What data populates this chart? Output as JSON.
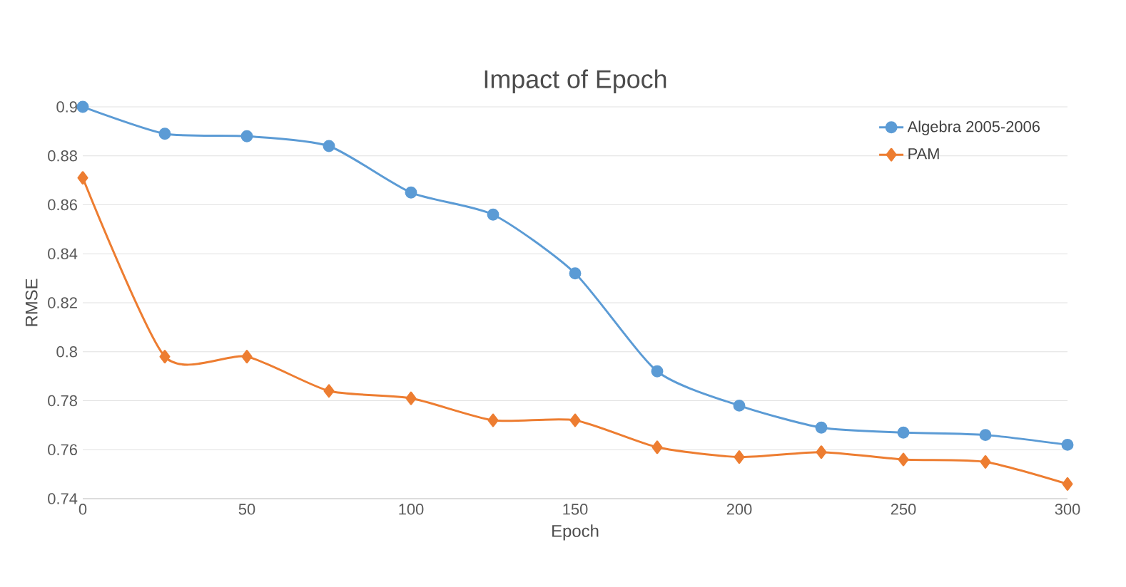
{
  "chart_data": {
    "type": "line",
    "title": "Impact of Epoch",
    "xlabel": "Epoch",
    "ylabel": "RMSE",
    "x": [
      0,
      25,
      50,
      75,
      100,
      125,
      150,
      175,
      200,
      225,
      250,
      275,
      300
    ],
    "series": [
      {
        "name": "Algebra 2005-2006",
        "color": "#5b9bd5",
        "marker": "circle",
        "values": [
          0.9,
          0.889,
          0.888,
          0.884,
          0.865,
          0.856,
          0.832,
          0.792,
          0.778,
          0.769,
          0.767,
          0.766,
          0.762
        ]
      },
      {
        "name": "PAM",
        "color": "#ed7d31",
        "marker": "diamond",
        "values": [
          0.871,
          0.798,
          0.798,
          0.784,
          0.781,
          0.772,
          0.772,
          0.761,
          0.757,
          0.759,
          0.756,
          0.755,
          0.746
        ]
      }
    ],
    "xlim": [
      0,
      300
    ],
    "xticks": [
      0,
      50,
      100,
      150,
      200,
      250,
      300
    ],
    "ylim": [
      0.74,
      0.9
    ],
    "yticks": [
      0.74,
      0.76,
      0.78,
      0.8,
      0.82,
      0.84,
      0.86,
      0.88,
      0.9
    ],
    "grid": "y",
    "legend": "top right",
    "line_style": "solid"
  }
}
